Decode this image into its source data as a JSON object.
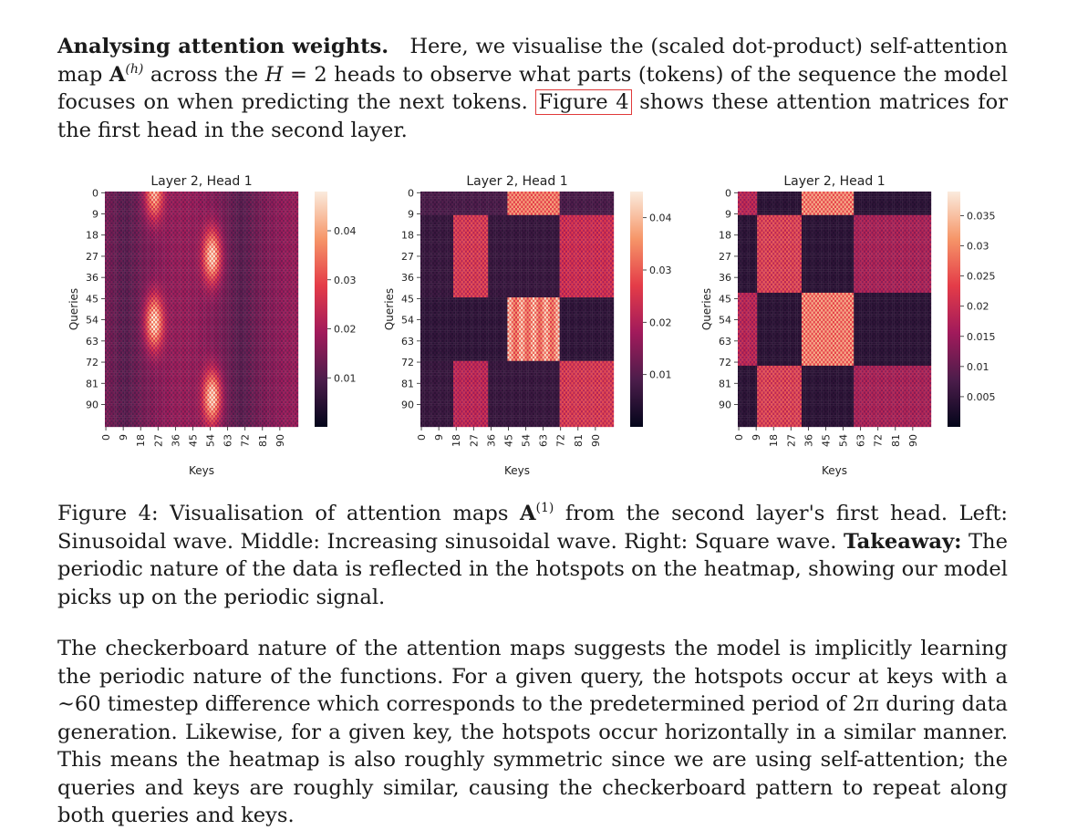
{
  "intro": {
    "heading": "Analysing attention weights.",
    "text_a": "Here, we visualise the (scaled dot-product) self-attention map",
    "A_symbol": "A",
    "A_superscript": "(h)",
    "text_b": "across the",
    "H_symbol": "H",
    "text_c": "= 2 heads to observe what parts (tokens) of the sequence the model focuses on when predicting the next tokens.",
    "figure_ref": "Figure 4",
    "text_d": "shows these attention matrices for the first head in the second layer."
  },
  "caption": {
    "label": "Figure 4: Visualisation of attention maps",
    "A_symbol": "A",
    "A_superscript": "(1)",
    "text_a": "from the second layer's first head. Left: Sinusoidal wave. Middle: Increasing sinusoidal wave. Right: Square wave.",
    "takeaway_label": "Takeaway:",
    "takeaway_text": "The periodic nature of the data is reflected in the hotspots on the heatmap, showing our model picks up on the periodic signal."
  },
  "body": {
    "text": "The checkerboard nature of the attention maps suggests the model is implicitly learning the periodic nature of the functions. For a given query, the hotspots occur at keys with a ~60 timestep difference which corresponds to the predetermined period of 2π during data generation. Likewise, for a given key, the hotspots occur horizontally in a similar manner. This means the heatmap is also roughly symmetric since we are using self-attention; the queries and keys are roughly similar, causing the checkerboard pattern to repeat along both queries and keys."
  },
  "chart_data": [
    {
      "type": "heatmap",
      "panel": "left",
      "description_word": "Sinusoidal wave",
      "title": "Layer 2, Head 1",
      "xlabel": "Keys",
      "ylabel": "Queries",
      "n": 100,
      "tick_labels": [
        "0",
        "9",
        "18",
        "27",
        "36",
        "45",
        "54",
        "63",
        "72",
        "81",
        "90"
      ],
      "colorbar_ticks": [
        0.01,
        0.02,
        0.03,
        0.04
      ],
      "colorbar_range": [
        0.0,
        0.048
      ],
      "pattern": "sinusoid",
      "hotspots": [
        {
          "query_center": 0,
          "key_center": 25,
          "value": 0.04
        },
        {
          "query_center": 27,
          "key_center": 55,
          "value": 0.045
        },
        {
          "query_center": 55,
          "key_center": 25,
          "value": 0.045
        },
        {
          "query_center": 87,
          "key_center": 55,
          "value": 0.045
        }
      ],
      "background_value": 0.012
    },
    {
      "type": "heatmap",
      "panel": "middle",
      "description_word": "Increasing sinusoidal wave",
      "title": "Layer 2, Head 1",
      "xlabel": "Keys",
      "ylabel": "Queries",
      "n": 100,
      "tick_labels": [
        "0",
        "9",
        "18",
        "27",
        "36",
        "45",
        "54",
        "63",
        "72",
        "81",
        "90"
      ],
      "colorbar_ticks": [
        0.01,
        0.02,
        0.03,
        0.04
      ],
      "colorbar_range": [
        0.0,
        0.045
      ],
      "pattern": "increasing-sinusoid",
      "row_bands": [
        [
          0,
          10
        ],
        [
          10,
          45
        ],
        [
          45,
          72
        ],
        [
          72,
          100
        ]
      ],
      "hot_key_bands": [
        [
          17,
          35
        ],
        [
          45,
          72
        ],
        [
          72,
          100
        ]
      ],
      "peak_value": 0.044,
      "background_value": 0.012
    },
    {
      "type": "heatmap",
      "panel": "right",
      "description_word": "Square wave",
      "title": "Layer 2, Head 1",
      "xlabel": "Keys",
      "ylabel": "Queries",
      "n": 100,
      "tick_labels": [
        "0",
        "9",
        "18",
        "27",
        "36",
        "45",
        "54",
        "63",
        "72",
        "81",
        "90"
      ],
      "colorbar_ticks": [
        0.005,
        0.01,
        0.015,
        0.02,
        0.025,
        0.03,
        0.035
      ],
      "colorbar_range": [
        0.0,
        0.039
      ],
      "pattern": "square",
      "row_bands": [
        [
          0,
          10
        ],
        [
          10,
          43
        ],
        [
          43,
          74
        ],
        [
          74,
          100
        ]
      ],
      "key_bands": [
        [
          0,
          10
        ],
        [
          10,
          33
        ],
        [
          33,
          60
        ],
        [
          60,
          100
        ]
      ],
      "peak_value": 0.037,
      "background_value": 0.008
    }
  ]
}
